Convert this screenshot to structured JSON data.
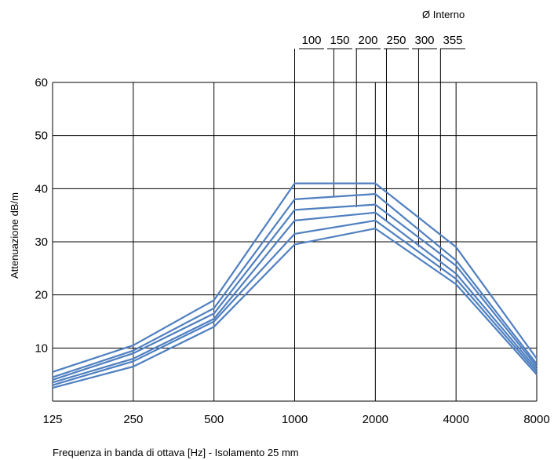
{
  "chart_data": {
    "type": "line",
    "xlabel": "Frequenza in banda di ottava [Hz] - Isolamento 25 mm",
    "ylabel": "Attenuazione dB/m",
    "x": [
      "125",
      "250",
      "500",
      "1000",
      "2000",
      "4000",
      "8000"
    ],
    "y_ticks": [
      10,
      20,
      30,
      40,
      50,
      60
    ],
    "ylim": [
      0,
      60
    ],
    "x_scale": "log2 octave bands",
    "grid": true,
    "line_color": "#4f7fc0",
    "legend": {
      "title": "Ø Interno",
      "placement": "top-right",
      "labels": [
        "100",
        "150",
        "200",
        "250",
        "300",
        "355"
      ]
    },
    "series": [
      {
        "name": "100",
        "values": [
          5.5,
          10.5,
          19.0,
          41.0,
          41.0,
          29.0,
          8.0
        ]
      },
      {
        "name": "150",
        "values": [
          4.5,
          9.5,
          17.5,
          38.0,
          39.0,
          26.5,
          7.0
        ]
      },
      {
        "name": "200",
        "values": [
          4.0,
          9.0,
          16.5,
          36.0,
          37.0,
          25.5,
          6.5
        ]
      },
      {
        "name": "250",
        "values": [
          3.5,
          8.0,
          15.5,
          34.0,
          35.5,
          24.0,
          6.0
        ]
      },
      {
        "name": "300",
        "values": [
          3.0,
          7.5,
          15.0,
          31.5,
          34.0,
          23.0,
          5.5
        ]
      },
      {
        "name": "355",
        "values": [
          2.5,
          6.5,
          14.0,
          29.5,
          32.5,
          22.0,
          5.0
        ]
      }
    ],
    "callouts": [
      {
        "label": "100",
        "x_value": 1000,
        "y_value": 41.0
      },
      {
        "label": "150",
        "x_value": 1400,
        "y_value": 38.5
      },
      {
        "label": "200",
        "x_value": 1700,
        "y_value": 36.5
      },
      {
        "label": "250",
        "x_value": 2200,
        "y_value": 34.0
      },
      {
        "label": "300",
        "x_value": 2900,
        "y_value": 29.0
      },
      {
        "label": "355",
        "x_value": 3500,
        "y_value": 24.5
      }
    ]
  }
}
